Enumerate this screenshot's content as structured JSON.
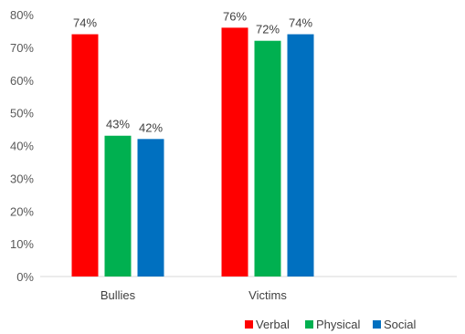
{
  "chart_data": {
    "type": "bar",
    "categories": [
      "Bullies",
      "Victims"
    ],
    "series": [
      {
        "name": "Verbal",
        "values": [
          74,
          76
        ],
        "color": "#ff0000"
      },
      {
        "name": "Physical",
        "values": [
          43,
          72
        ],
        "color": "#00b050"
      },
      {
        "name": "Social",
        "values": [
          42,
          74
        ],
        "color": "#0070c0"
      }
    ],
    "data_labels": [
      [
        "74%",
        "76%"
      ],
      [
        "43%",
        "72%"
      ],
      [
        "42%",
        "74%"
      ]
    ],
    "y_ticks": [
      "0%",
      "10%",
      "20%",
      "30%",
      "40%",
      "50%",
      "60%",
      "70%",
      "80%"
    ],
    "ylim": [
      0,
      80
    ],
    "grid": false,
    "legend": "bottom-right",
    "axis_color": "#d9d9d9"
  }
}
